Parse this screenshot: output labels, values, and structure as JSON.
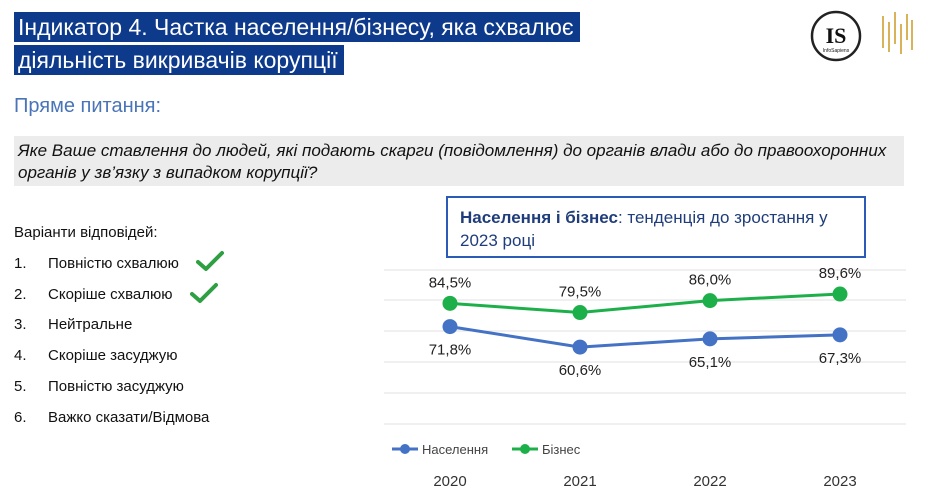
{
  "header": {
    "title_line1": "Індикатор 4. Частка населення/бізнесу, яка схвалює",
    "title_line2": "діяльність викривачів корупції",
    "logo_text": "IS",
    "logo_sub": "InfoSapiens"
  },
  "subtitle": "Пряме питання:",
  "question": "Яке Ваше ставлення до людей, які подають скарги (повідомлення) до органів влади або до правоохоронних органів у зв’язку з випадком корупції?",
  "options": {
    "title": "Варіанти відповідей:",
    "items": [
      {
        "num": "1.",
        "label": "Повністю схвалюю"
      },
      {
        "num": "2.",
        "label": "Скоріше схвалюю"
      },
      {
        "num": "3.",
        "label": "Нейтральне"
      },
      {
        "num": "4.",
        "label": "Скоріше засуджую"
      },
      {
        "num": "5.",
        "label": "Повністю засуджую"
      },
      {
        "num": "6.",
        "label": "Важко сказати/Відмова"
      }
    ]
  },
  "callout": {
    "bold": "Населення і бізнес",
    "text": ": тенденція до зростання у 2023 році"
  },
  "colors": {
    "population": "#4472c4",
    "business": "#1db04a",
    "check": "#2ea043"
  },
  "chart_data": {
    "type": "line",
    "categories": [
      "2020",
      "2021",
      "2022",
      "2023"
    ],
    "series": [
      {
        "name": "Населення",
        "values": [
          71.8,
          60.6,
          65.1,
          67.3
        ],
        "labels": [
          "71,8%",
          "60,6%",
          "65,1%",
          "67,3%"
        ]
      },
      {
        "name": "Бізнес",
        "values": [
          84.5,
          79.5,
          86.0,
          89.6
        ],
        "labels": [
          "84,5%",
          "79,5%",
          "86,0%",
          "89,6%"
        ]
      }
    ],
    "legend_position": "bottom-left",
    "grid": true
  }
}
